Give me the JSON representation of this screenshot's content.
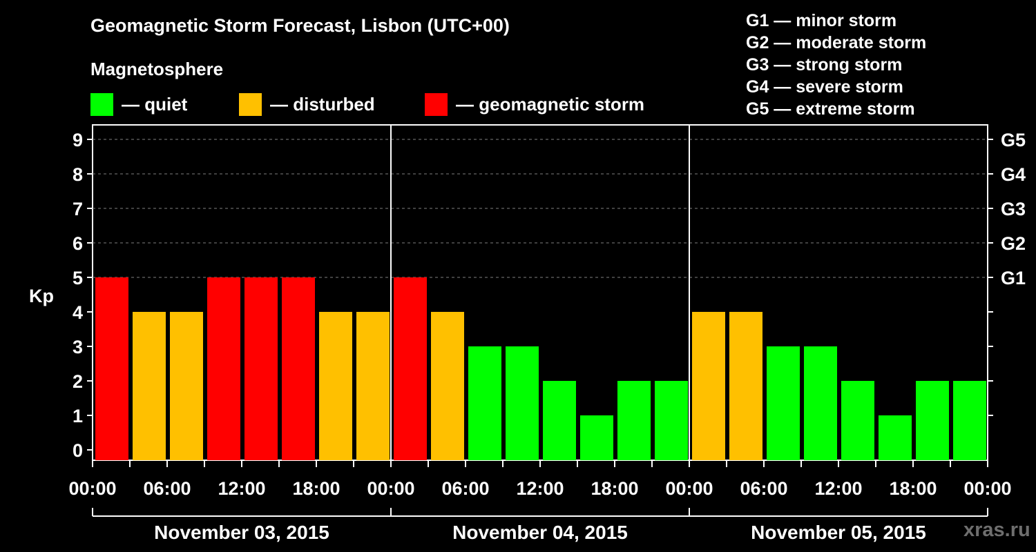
{
  "colors": {
    "quiet": "#00ff00",
    "disturbed": "#ffc000",
    "storm": "#ff0000",
    "background": "#000000",
    "gridline": "#808080",
    "watermark": "#6e6e6e"
  },
  "legend": {
    "title": "Magnetosphere",
    "items": [
      {
        "key": "quiet",
        "label": "— quiet"
      },
      {
        "key": "disturbed",
        "label": "— disturbed"
      },
      {
        "key": "storm",
        "label": "— geomagnetic storm"
      }
    ]
  },
  "storm_scale": [
    {
      "level": "G1",
      "label": "G1 — minor storm"
    },
    {
      "level": "G2",
      "label": "G2 — moderate storm"
    },
    {
      "level": "G3",
      "label": "G3 — strong storm"
    },
    {
      "level": "G4",
      "label": "G4 — severe storm"
    },
    {
      "level": "G5",
      "label": "G5 — extreme storm"
    }
  ],
  "watermark": "xras.ru",
  "chart_data": {
    "type": "bar",
    "title": "Geomagnetic Storm Forecast, Lisbon (UTC+00)",
    "ylabel": "Kp",
    "ylim": [
      0,
      9
    ],
    "yticks": [
      "0",
      "1",
      "2",
      "3",
      "4",
      "5",
      "6",
      "7",
      "8",
      "9"
    ],
    "right_axis": [
      {
        "kp": 5,
        "label": "G1"
      },
      {
        "kp": 6,
        "label": "G2"
      },
      {
        "kp": 7,
        "label": "G3"
      },
      {
        "kp": 8,
        "label": "G4"
      },
      {
        "kp": 9,
        "label": "G5"
      }
    ],
    "grid": "dashed horizontal at Kp 5–9",
    "interval_hours": 3,
    "xtick_labels": [
      "00:00",
      "06:00",
      "12:00",
      "18:00",
      "00:00",
      "06:00",
      "12:00",
      "18:00",
      "00:00",
      "06:00",
      "12:00",
      "18:00",
      "00:00"
    ],
    "days": [
      {
        "date": "November 03, 2015",
        "kp": [
          5,
          4,
          4,
          5,
          5,
          5,
          4,
          4
        ],
        "status": [
          "storm",
          "disturbed",
          "disturbed",
          "storm",
          "storm",
          "storm",
          "disturbed",
          "disturbed"
        ]
      },
      {
        "date": "November 04, 2015",
        "kp": [
          5,
          4,
          3,
          3,
          2,
          1,
          2,
          2
        ],
        "status": [
          "storm",
          "disturbed",
          "quiet",
          "quiet",
          "quiet",
          "quiet",
          "quiet",
          "quiet"
        ]
      },
      {
        "date": "November 05, 2015",
        "kp": [
          4,
          4,
          3,
          3,
          2,
          1,
          2,
          2
        ],
        "status": [
          "disturbed",
          "disturbed",
          "quiet",
          "quiet",
          "quiet",
          "quiet",
          "quiet",
          "quiet"
        ]
      }
    ]
  }
}
